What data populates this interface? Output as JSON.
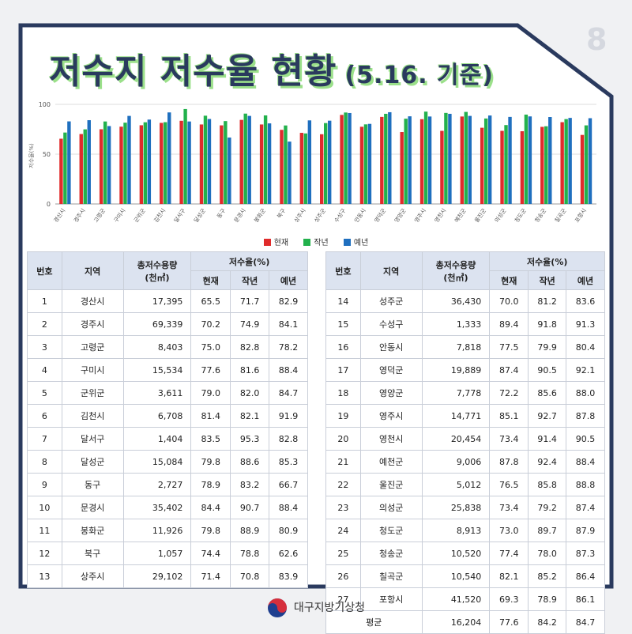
{
  "header": {
    "page_number": "8",
    "title": "저수지 저수율 현황",
    "subtitle": "(5.16. 기준)"
  },
  "colors": {
    "current": "#e02b2b",
    "last_year": "#22b14c",
    "normal": "#1f6fbf",
    "frame": "#2a3a5e"
  },
  "chart_data": {
    "type": "bar",
    "ylabel": "저수율(%)",
    "ylim": [
      0,
      100
    ],
    "yticks": [
      0,
      50,
      100
    ],
    "grid": true,
    "legend_position": "bottom",
    "categories": [
      "경산시",
      "경주시",
      "고령군",
      "구미시",
      "군위군",
      "김천시",
      "달서구",
      "달성군",
      "동구",
      "문경시",
      "봉화군",
      "북구",
      "상주시",
      "성주군",
      "수성구",
      "안동시",
      "영덕군",
      "영양군",
      "영주시",
      "영천시",
      "예천군",
      "울진군",
      "의성군",
      "청도군",
      "청송군",
      "칠곡군",
      "포항시"
    ],
    "series": [
      {
        "name": "현재",
        "values": [
          65.5,
          70.2,
          75.0,
          77.6,
          79.0,
          81.4,
          83.5,
          79.8,
          78.9,
          84.4,
          79.8,
          74.4,
          71.4,
          70.0,
          89.4,
          77.5,
          87.4,
          72.2,
          85.1,
          73.4,
          87.8,
          76.5,
          73.4,
          73.0,
          77.4,
          82.1,
          69.3
        ]
      },
      {
        "name": "작년",
        "values": [
          71.7,
          74.9,
          82.8,
          81.6,
          82.0,
          82.1,
          95.3,
          88.6,
          83.2,
          90.7,
          88.9,
          78.8,
          70.8,
          81.2,
          91.8,
          79.9,
          90.5,
          85.6,
          92.7,
          91.4,
          92.4,
          85.8,
          79.2,
          89.7,
          78.0,
          85.2,
          78.9
        ]
      },
      {
        "name": "예년",
        "values": [
          82.9,
          84.1,
          78.2,
          88.4,
          84.7,
          91.9,
          82.8,
          85.3,
          66.7,
          88.4,
          80.9,
          62.6,
          83.9,
          83.6,
          91.3,
          80.4,
          92.1,
          88.0,
          87.8,
          90.5,
          88.4,
          88.8,
          87.4,
          87.9,
          87.3,
          86.4,
          86.1
        ]
      }
    ]
  },
  "legend": {
    "current": "현재",
    "last_year": "작년",
    "normal": "예년"
  },
  "table": {
    "headers": {
      "no": "번호",
      "region": "지역",
      "capacity": "총저수용량",
      "capacity_unit": "(천㎥)",
      "rate": "저수율(%)",
      "current": "현재",
      "last_year": "작년",
      "normal": "예년"
    },
    "left_rows": [
      [
        "1",
        "경산시",
        "17,395",
        "65.5",
        "71.7",
        "82.9"
      ],
      [
        "2",
        "경주시",
        "69,339",
        "70.2",
        "74.9",
        "84.1"
      ],
      [
        "3",
        "고령군",
        "8,403",
        "75.0",
        "82.8",
        "78.2"
      ],
      [
        "4",
        "구미시",
        "15,534",
        "77.6",
        "81.6",
        "88.4"
      ],
      [
        "5",
        "군위군",
        "3,611",
        "79.0",
        "82.0",
        "84.7"
      ],
      [
        "6",
        "김천시",
        "6,708",
        "81.4",
        "82.1",
        "91.9"
      ],
      [
        "7",
        "달서구",
        "1,404",
        "83.5",
        "95.3",
        "82.8"
      ],
      [
        "8",
        "달성군",
        "15,084",
        "79.8",
        "88.6",
        "85.3"
      ],
      [
        "9",
        "동구",
        "2,727",
        "78.9",
        "83.2",
        "66.7"
      ],
      [
        "10",
        "문경시",
        "35,402",
        "84.4",
        "90.7",
        "88.4"
      ],
      [
        "11",
        "봉화군",
        "11,926",
        "79.8",
        "88.9",
        "80.9"
      ],
      [
        "12",
        "북구",
        "1,057",
        "74.4",
        "78.8",
        "62.6"
      ],
      [
        "13",
        "상주시",
        "29,102",
        "71.4",
        "70.8",
        "83.9"
      ]
    ],
    "right_rows": [
      [
        "14",
        "성주군",
        "36,430",
        "70.0",
        "81.2",
        "83.6"
      ],
      [
        "15",
        "수성구",
        "1,333",
        "89.4",
        "91.8",
        "91.3"
      ],
      [
        "16",
        "안동시",
        "7,818",
        "77.5",
        "79.9",
        "80.4"
      ],
      [
        "17",
        "영덕군",
        "19,889",
        "87.4",
        "90.5",
        "92.1"
      ],
      [
        "18",
        "영양군",
        "7,778",
        "72.2",
        "85.6",
        "88.0"
      ],
      [
        "19",
        "영주시",
        "14,771",
        "85.1",
        "92.7",
        "87.8"
      ],
      [
        "20",
        "영천시",
        "20,454",
        "73.4",
        "91.4",
        "90.5"
      ],
      [
        "21",
        "예천군",
        "9,006",
        "87.8",
        "92.4",
        "88.4"
      ],
      [
        "22",
        "울진군",
        "5,012",
        "76.5",
        "85.8",
        "88.8"
      ],
      [
        "23",
        "의성군",
        "25,838",
        "73.4",
        "79.2",
        "87.4"
      ],
      [
        "24",
        "청도군",
        "8,913",
        "73.0",
        "89.7",
        "87.9"
      ],
      [
        "25",
        "청송군",
        "10,520",
        "77.4",
        "78.0",
        "87.3"
      ],
      [
        "26",
        "칠곡군",
        "10,540",
        "82.1",
        "85.2",
        "86.4"
      ],
      [
        "27",
        "포항시",
        "41,520",
        "69.3",
        "78.9",
        "86.1"
      ]
    ],
    "average": {
      "label": "평균",
      "capacity": "16,204",
      "current": "77.6",
      "last_year": "84.2",
      "normal": "84.7"
    }
  },
  "footer": {
    "agency": "대구지방기상청"
  }
}
